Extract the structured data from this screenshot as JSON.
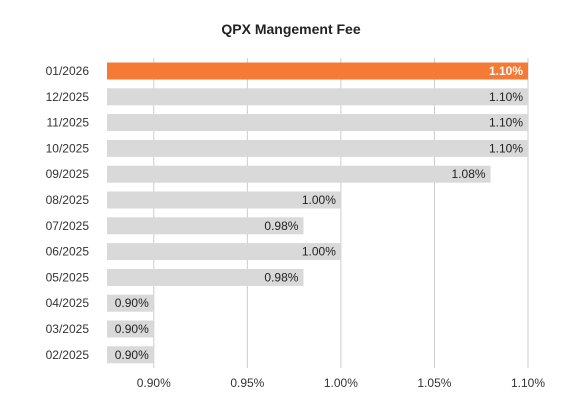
{
  "chart_data": {
    "type": "bar",
    "orientation": "horizontal",
    "title": "QPX Mangement Fee",
    "categories": [
      "01/2026",
      "12/2025",
      "11/2025",
      "10/2025",
      "09/2025",
      "08/2025",
      "07/2025",
      "06/2025",
      "05/2025",
      "04/2025",
      "03/2025",
      "02/2025"
    ],
    "values": [
      1.1,
      1.1,
      1.1,
      1.1,
      1.08,
      1.0,
      0.98,
      1.0,
      0.98,
      0.9,
      0.9,
      0.9
    ],
    "value_labels": [
      "1.10%",
      "1.10%",
      "1.10%",
      "1.10%",
      "1.08%",
      "1.00%",
      "0.98%",
      "1.00%",
      "0.98%",
      "0.90%",
      "0.90%",
      "0.90%"
    ],
    "xticks": [
      "0.90%",
      "0.95%",
      "1.00%",
      "1.05%",
      "1.10%"
    ],
    "xtick_values": [
      0.9,
      0.95,
      1.0,
      1.05,
      1.1
    ],
    "xlim": [
      0.875,
      1.1
    ],
    "xlabel": "",
    "ylabel": "",
    "grid": true,
    "legend": "none",
    "highlight_index": 0,
    "colors": {
      "highlight": "#f47a36",
      "bar": "#d9d9d9",
      "grid": "#cccccc"
    }
  }
}
